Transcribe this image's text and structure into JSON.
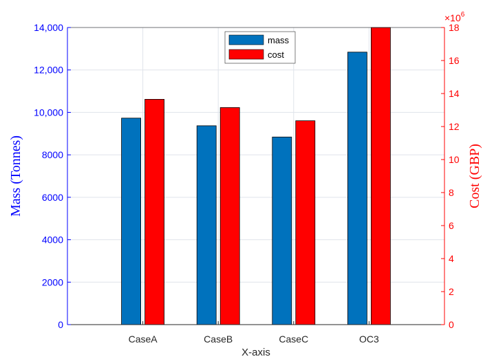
{
  "chart_data": {
    "type": "bar",
    "categories": [
      "CaseA",
      "CaseB",
      "CaseC",
      "OC3"
    ],
    "xlabel": "X-axis",
    "series": [
      {
        "name": "mass",
        "axis": "left",
        "color": "#0072bd",
        "values": [
          9730,
          9370,
          8840,
          12840
        ]
      },
      {
        "name": "cost",
        "axis": "right",
        "color": "#ff0000",
        "values": [
          13.65,
          13.15,
          12.35,
          18.0
        ]
      }
    ],
    "y_left": {
      "label": "Mass (Tonnes)",
      "ylim": [
        0,
        14000
      ],
      "ticks": [
        0,
        2000,
        4000,
        6000,
        8000,
        10000,
        12000,
        14000
      ],
      "tick_labels": [
        "0",
        "2000",
        "4000",
        "6000",
        "8000",
        "10,000",
        "12,000",
        "14,000"
      ],
      "color": "#0000ff"
    },
    "y_right": {
      "label": "Cost (GBP)",
      "ylim": [
        0,
        18
      ],
      "ticks": [
        0,
        2,
        4,
        6,
        8,
        10,
        12,
        14,
        16,
        18
      ],
      "tick_labels": [
        "0",
        "2",
        "4",
        "6",
        "8",
        "10",
        "12",
        "14",
        "16",
        "18"
      ],
      "scale_base": "×10",
      "scale_exponent": "6",
      "color": "#ff0000"
    },
    "grid": true,
    "legend_position": "top-center"
  }
}
